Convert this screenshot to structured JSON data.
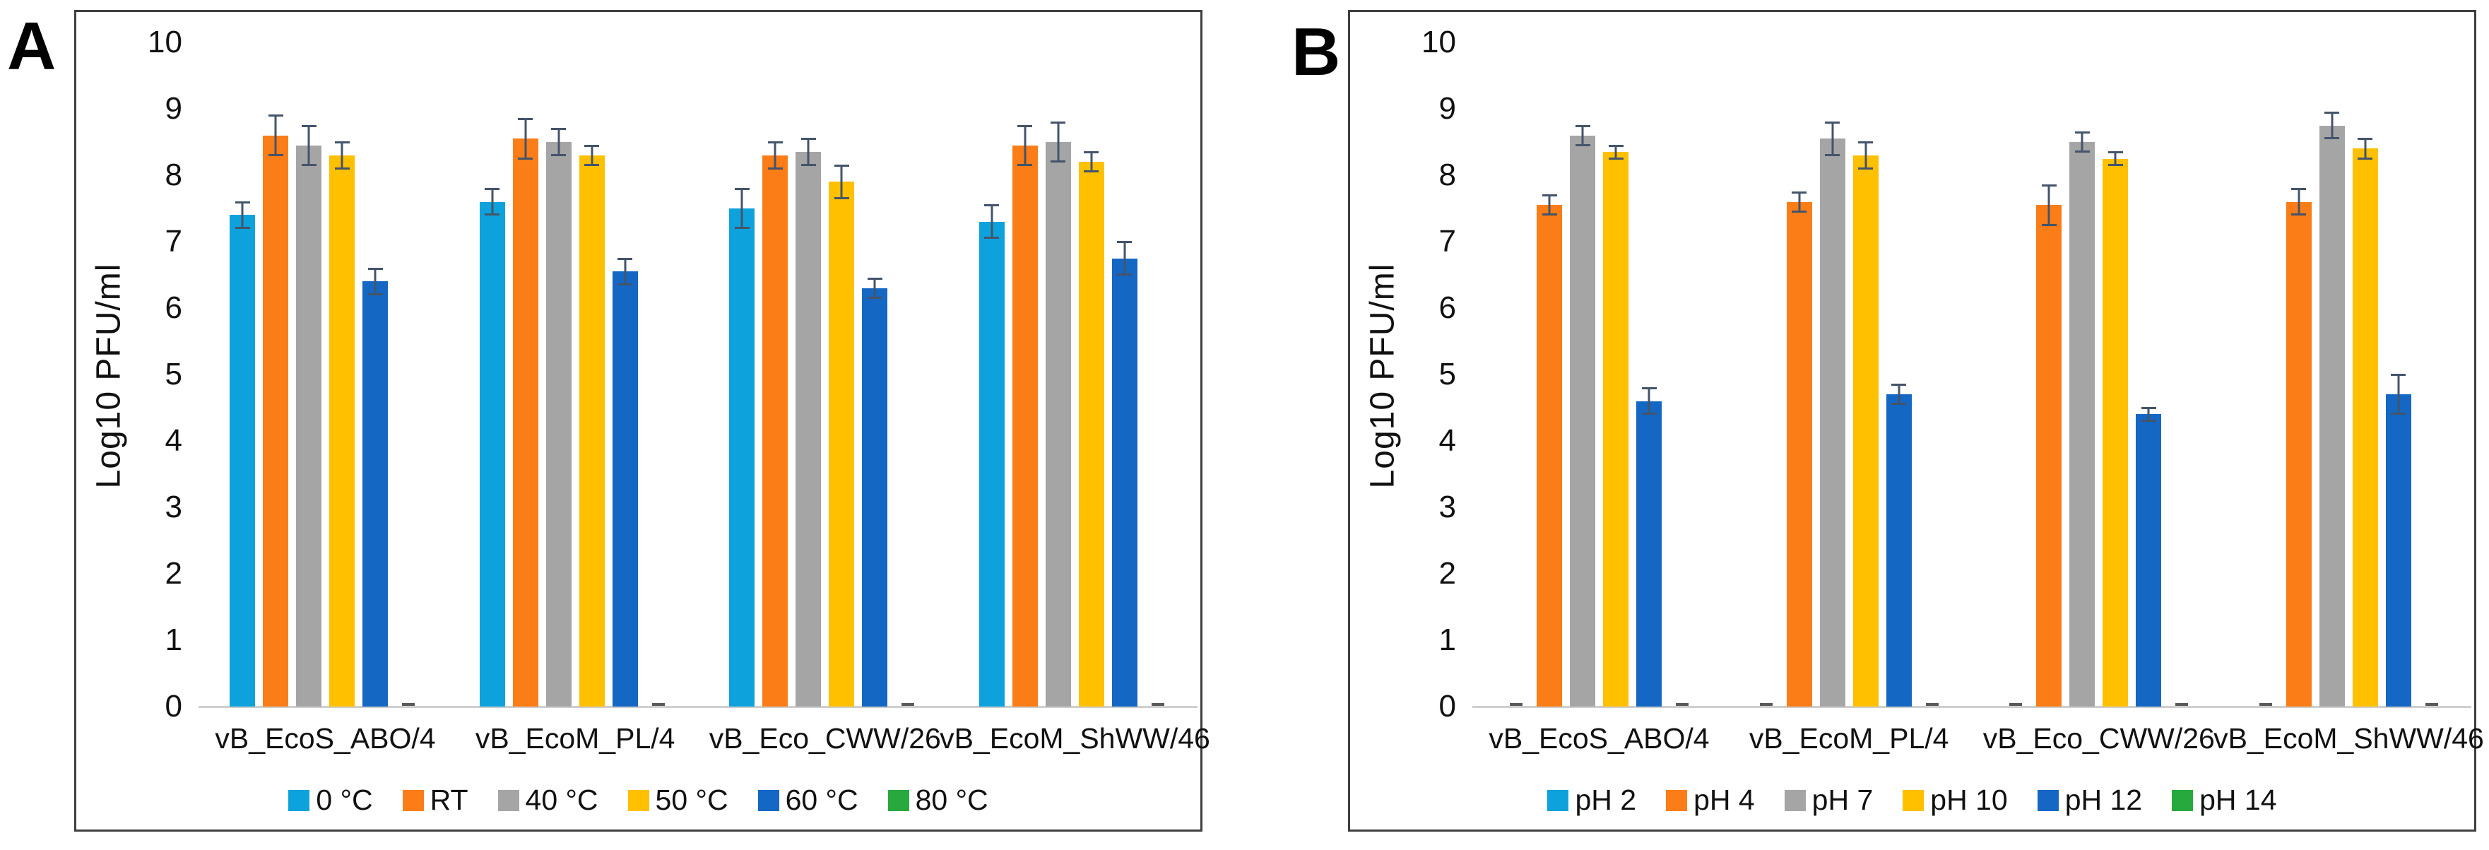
{
  "figure": {
    "panels": [
      {
        "letter": "A"
      },
      {
        "letter": "B"
      }
    ]
  },
  "style": {
    "error_bar_color": "#44546A",
    "axis_line_color": "#CFCFCF",
    "near_zero_dash_color": "#595959",
    "panel_border_color": "#3F3F3F"
  },
  "chart_data": [
    {
      "panel": "A",
      "type": "bar",
      "title": "",
      "xlabel": "",
      "ylabel": "Log10 PFU/ml",
      "ylim": [
        0,
        10
      ],
      "yticks": [
        0,
        1,
        2,
        3,
        4,
        5,
        6,
        7,
        8,
        9,
        10
      ],
      "grid": false,
      "legend_position": "bottom",
      "error_bars": true,
      "categories": [
        "vB_EcoS_ABO/4",
        "vB_EcoM_PL/4",
        "vB_Eco_CWW/26",
        "vB_EcoM_ShWW/46"
      ],
      "series": [
        {
          "name": "0 °C",
          "color": "#0EA2DC",
          "values": [
            7.4,
            7.6,
            7.5,
            7.3
          ],
          "errors": [
            0.2,
            0.2,
            0.3,
            0.25
          ]
        },
        {
          "name": "RT",
          "color": "#FB7D17",
          "values": [
            8.6,
            8.55,
            8.3,
            8.45
          ],
          "errors": [
            0.3,
            0.3,
            0.2,
            0.3
          ]
        },
        {
          "name": "40 °C",
          "color": "#A5A5A5",
          "values": [
            8.45,
            8.5,
            8.35,
            8.5
          ],
          "errors": [
            0.3,
            0.2,
            0.2,
            0.3
          ]
        },
        {
          "name": "50 °C",
          "color": "#FFC000",
          "values": [
            8.3,
            8.3,
            7.9,
            8.2
          ],
          "errors": [
            0.2,
            0.15,
            0.25,
            0.15
          ]
        },
        {
          "name": "60 °C",
          "color": "#1567C4",
          "values": [
            6.4,
            6.55,
            6.3,
            6.75
          ],
          "errors": [
            0.2,
            0.2,
            0.15,
            0.25
          ]
        },
        {
          "name": "80 °C",
          "color": "#27A93E",
          "values": [
            0.02,
            0.02,
            0.02,
            0.02
          ],
          "errors": [
            0,
            0,
            0,
            0
          ]
        }
      ]
    },
    {
      "panel": "B",
      "type": "bar",
      "title": "",
      "xlabel": "",
      "ylabel": "Log10 PFU/ml",
      "ylim": [
        0,
        10
      ],
      "yticks": [
        0,
        1,
        2,
        3,
        4,
        5,
        6,
        7,
        8,
        9,
        10
      ],
      "grid": false,
      "legend_position": "bottom",
      "error_bars": true,
      "categories": [
        "vB_EcoS_ABO/4",
        "vB_EcoM_PL/4",
        "vB_Eco_CWW/26",
        "vB_EcoM_ShWW/46"
      ],
      "series": [
        {
          "name": "pH 2",
          "color": "#0EA2DC",
          "values": [
            0.02,
            0.02,
            0.02,
            0.02
          ],
          "errors": [
            0,
            0,
            0,
            0
          ]
        },
        {
          "name": "pH 4",
          "color": "#FB7D17",
          "values": [
            7.55,
            7.6,
            7.55,
            7.6
          ],
          "errors": [
            0.15,
            0.15,
            0.3,
            0.2
          ]
        },
        {
          "name": "pH 7",
          "color": "#A5A5A5",
          "values": [
            8.6,
            8.55,
            8.5,
            8.75
          ],
          "errors": [
            0.15,
            0.25,
            0.15,
            0.2
          ]
        },
        {
          "name": "pH 10",
          "color": "#FFC000",
          "values": [
            8.35,
            8.3,
            8.25,
            8.4
          ],
          "errors": [
            0.1,
            0.2,
            0.1,
            0.15
          ]
        },
        {
          "name": "pH 12",
          "color": "#1567C4",
          "values": [
            4.6,
            4.7,
            4.4,
            4.7
          ],
          "errors": [
            0.2,
            0.15,
            0.1,
            0.3
          ]
        },
        {
          "name": "pH 14",
          "color": "#27A93E",
          "values": [
            0.02,
            0.02,
            0.02,
            0.02
          ],
          "errors": [
            0,
            0,
            0,
            0
          ]
        }
      ]
    }
  ]
}
